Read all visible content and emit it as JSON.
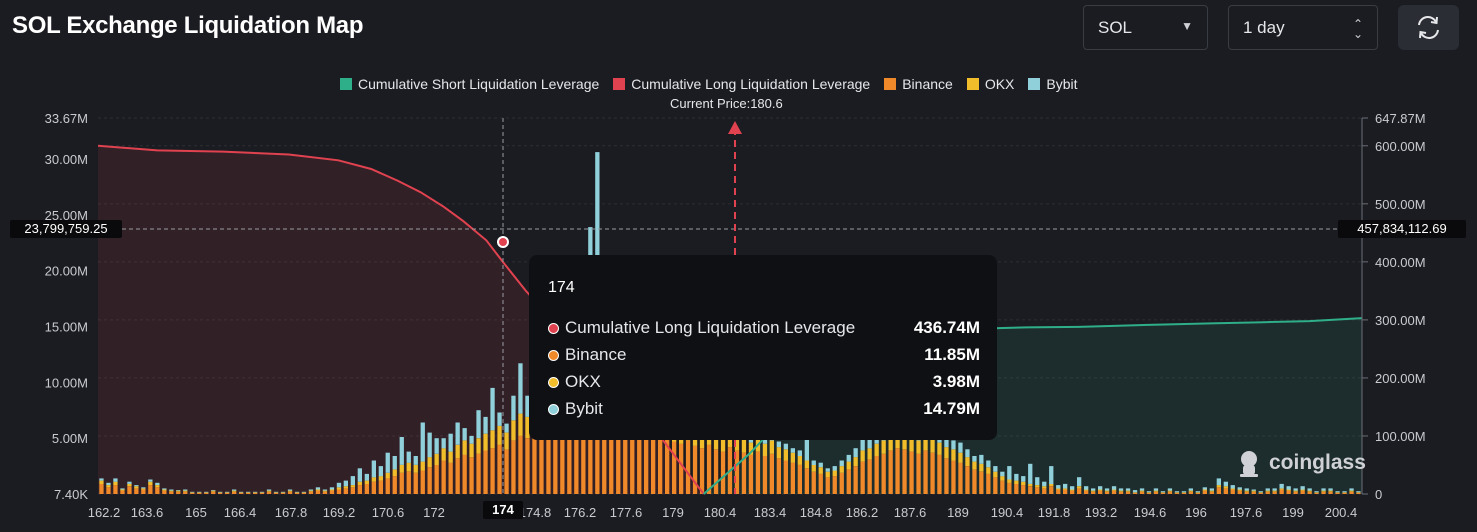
{
  "title": "SOL Exchange Liquidation Map",
  "controls": {
    "symbol": "SOL",
    "timeframe": "1 day"
  },
  "current_price_label": "Current Price:180.6",
  "crosshair": {
    "x_label": "174",
    "left_value": "23,799,759.25",
    "right_value": "457,834,112.69"
  },
  "tooltip": {
    "title": "174",
    "rows": [
      {
        "name": "Cumulative Long Liquidation Leverage",
        "value": "436.74M",
        "color": "#e0424f"
      },
      {
        "name": "Binance",
        "value": "11.85M",
        "color": "#f0892a"
      },
      {
        "name": "OKX",
        "value": "3.98M",
        "color": "#f1bd2b"
      },
      {
        "name": "Bybit",
        "value": "14.79M",
        "color": "#8fd0da"
      }
    ]
  },
  "watermark": "coinglass",
  "chart_data": {
    "type": "bar",
    "current_price": 180.6,
    "legend": [
      {
        "name": "Cumulative Short Liquidation Leverage",
        "color": "#2fae8a"
      },
      {
        "name": "Cumulative Long Liquidation Leverage",
        "color": "#e0424f"
      },
      {
        "name": "Binance",
        "color": "#f0892a"
      },
      {
        "name": "OKX",
        "color": "#f1bd2b"
      },
      {
        "name": "Bybit",
        "color": "#8fd0da"
      }
    ],
    "x_ticks": [
      "162.2",
      "163.6",
      "165",
      "166.4",
      "167.8",
      "169.2",
      "170.6",
      "172",
      "174",
      "174.8",
      "176.2",
      "177.6",
      "179",
      "180.4",
      "183.4",
      "184.8",
      "186.2",
      "187.6",
      "189",
      "190.4",
      "191.8",
      "193.2",
      "194.6",
      "196",
      "197.6",
      "199",
      "200.4"
    ],
    "left_axis": {
      "ticks": [
        "7.40K",
        "5.00M",
        "10.00M",
        "15.00M",
        "20.00M",
        "25.00M",
        "30.00M",
        "33.67M"
      ],
      "range": [
        0,
        33670000
      ]
    },
    "right_axis": {
      "ticks": [
        "0",
        "100.00M",
        "200.00M",
        "300.00M",
        "400.00M",
        "500.00M",
        "600.00M",
        "647.87M"
      ],
      "range": [
        0,
        647870000
      ]
    },
    "x_range": [
      162.2,
      200.6
    ],
    "series": [
      {
        "name": "Cumulative Long Liquidation Leverage",
        "axis": "right",
        "x": [
          162.2,
          164,
          166,
          168,
          169.5,
          170.5,
          171.3,
          172,
          172.7,
          173.3,
          174,
          174.5,
          175.2,
          176,
          177,
          178,
          179,
          180,
          180.6
        ],
        "values": [
          600,
          592,
          590,
          585,
          575,
          560,
          540,
          520,
          495,
          470,
          437,
          400,
          350,
          300,
          250,
          190,
          120,
          45,
          0
        ]
      },
      {
        "name": "Cumulative Short Liquidation Leverage",
        "axis": "right",
        "x": [
          180.6,
          181.2,
          182,
          183,
          184,
          185,
          186.3,
          187,
          188,
          189,
          190.4,
          192,
          193.2,
          194.6,
          196,
          197.6,
          199,
          200.6
        ],
        "values": [
          0,
          30,
          70,
          130,
          200,
          260,
          285,
          282,
          283,
          285,
          287,
          288,
          290,
          292,
          294,
          296,
          298,
          303
        ]
      },
      {
        "name": "Binance",
        "axis": "left",
        "values_millions": [
          0.9,
          0.6,
          0.8,
          0.3,
          0.7,
          0.5,
          0.4,
          0.8,
          0.6,
          0.3,
          0.2,
          0.2,
          0.2,
          0.1,
          0.1,
          0.1,
          0.2,
          0.1,
          0.1,
          0.2,
          0.1,
          0.1,
          0.1,
          0.1,
          0.2,
          0.1,
          0.1,
          0.2,
          0.1,
          0.1,
          0.2,
          0.3,
          0.2,
          0.3,
          0.4,
          0.5,
          0.6,
          0.8,
          0.9,
          1.1,
          1.2,
          1.4,
          1.6,
          1.9,
          2.0,
          1.9,
          2.1,
          2.4,
          2.6,
          3.0,
          2.8,
          3.2,
          3.5,
          3.3,
          3.6,
          3.9,
          4.1,
          4.4,
          4.0,
          4.8,
          5.2,
          5.0,
          5.6,
          6.1,
          5.8,
          6.4,
          6.9,
          7.5,
          8.2,
          9.3,
          10.6,
          11.85,
          11.0,
          9.8,
          8.6,
          7.5,
          6.6,
          5.9,
          5.5,
          5.2,
          4.9,
          5.0,
          4.7,
          4.5,
          4.8,
          4.3,
          4.1,
          4.4,
          4.0,
          3.8,
          4.2,
          3.9,
          3.7,
          3.5,
          3.8,
          3.4,
          3.6,
          3.2,
          3.0,
          2.8,
          2.6,
          2.3,
          2.0,
          1.8,
          1.5,
          1.6,
          1.9,
          2.2,
          2.5,
          2.9,
          3.1,
          3.4,
          3.6,
          3.9,
          4.1,
          4.0,
          3.8,
          3.6,
          3.9,
          3.7,
          3.5,
          3.2,
          3.0,
          2.8,
          2.5,
          2.2,
          2.0,
          1.8,
          1.5,
          1.2,
          1.0,
          0.9,
          0.8,
          0.7,
          0.6,
          0.5,
          0.7,
          0.4,
          0.4,
          0.3,
          0.5,
          0.3,
          0.2,
          0.3,
          0.2,
          0.3,
          0.2,
          0.2,
          0.1,
          0.2,
          0.1,
          0.2,
          0.1,
          0.2,
          0.1,
          0.1,
          0.2,
          0.1,
          0.3,
          0.2,
          0.6,
          0.5,
          0.4,
          0.3,
          0.2,
          0.2,
          0.1,
          0.2,
          0.2,
          0.4,
          0.3,
          0.2,
          0.3,
          0.2,
          0.1,
          0.2,
          0.2,
          0.1,
          0.1,
          0.2,
          0.1
        ]
      },
      {
        "name": "OKX",
        "axis": "left",
        "values_millions": [
          0.3,
          0.2,
          0.3,
          0.1,
          0.2,
          0.2,
          0.1,
          0.3,
          0.2,
          0.1,
          0.1,
          0.1,
          0.1,
          0.05,
          0.05,
          0.05,
          0.1,
          0.05,
          0.05,
          0.1,
          0.05,
          0.05,
          0.05,
          0.05,
          0.1,
          0.05,
          0.05,
          0.1,
          0.05,
          0.05,
          0.1,
          0.1,
          0.1,
          0.1,
          0.2,
          0.2,
          0.2,
          0.3,
          0.3,
          0.4,
          0.4,
          0.5,
          0.6,
          0.7,
          0.8,
          0.7,
          0.8,
          0.9,
          1.0,
          1.1,
          1.0,
          1.2,
          1.3,
          1.2,
          1.4,
          1.5,
          1.6,
          1.7,
          1.5,
          1.8,
          2.0,
          1.9,
          2.2,
          2.4,
          2.2,
          2.5,
          2.7,
          2.9,
          3.1,
          3.5,
          3.8,
          3.98,
          3.7,
          3.3,
          2.9,
          2.5,
          2.2,
          2.0,
          1.8,
          1.7,
          1.6,
          1.7,
          1.5,
          1.5,
          1.6,
          1.4,
          1.3,
          1.5,
          1.3,
          1.2,
          1.4,
          1.3,
          1.2,
          1.1,
          1.3,
          1.1,
          1.2,
          1.0,
          1.0,
          0.9,
          0.8,
          0.7,
          0.6,
          0.6,
          0.5,
          0.5,
          0.6,
          0.7,
          0.8,
          1.0,
          1.0,
          1.1,
          1.2,
          1.3,
          1.4,
          1.3,
          1.2,
          1.2,
          1.3,
          1.2,
          1.1,
          1.0,
          1.0,
          0.9,
          0.8,
          0.7,
          0.7,
          0.6,
          0.5,
          0.4,
          0.3,
          0.3,
          0.3,
          0.2,
          0.2,
          0.2,
          0.2,
          0.1,
          0.1,
          0.1,
          0.2,
          0.1,
          0.1,
          0.1,
          0.1,
          0.1,
          0.1,
          0.1,
          0.05,
          0.1,
          0.05,
          0.1,
          0.05,
          0.1,
          0.05,
          0.05,
          0.1,
          0.05,
          0.1,
          0.1,
          0.2,
          0.2,
          0.1,
          0.1,
          0.1,
          0.1,
          0.05,
          0.1,
          0.1,
          0.1,
          0.1,
          0.1,
          0.1,
          0.1,
          0.05,
          0.1,
          0.1,
          0.05,
          0.05,
          0.1,
          0.05
        ]
      },
      {
        "name": "Bybit",
        "axis": "left",
        "values_millions": [
          0.2,
          0.2,
          0.3,
          0.1,
          0.2,
          0.1,
          0.1,
          0.2,
          0.2,
          0.1,
          0.1,
          0.05,
          0.1,
          0.05,
          0.05,
          0.05,
          0.05,
          0.05,
          0.05,
          0.1,
          0.05,
          0.05,
          0.05,
          0.05,
          0.1,
          0.05,
          0.05,
          0.1,
          0.05,
          0.05,
          0.1,
          0.2,
          0.1,
          0.2,
          0.4,
          0.5,
          0.8,
          1.2,
          0.6,
          1.5,
          0.9,
          1.8,
          1.2,
          2.5,
          1.0,
          0.8,
          3.5,
          2.2,
          1.4,
          0.9,
          1.6,
          2.0,
          1.1,
          0.7,
          2.5,
          1.5,
          3.8,
          1.2,
          0.8,
          2.2,
          4.5,
          1.9,
          2.6,
          3.1,
          1.8,
          2.9,
          3.6,
          4.0,
          5.2,
          6.8,
          9.5,
          14.79,
          3.2,
          4.6,
          6.1,
          2.8,
          2.4,
          1.6,
          1.8,
          1.2,
          1.1,
          2.0,
          1.3,
          0.9,
          1.6,
          1.0,
          0.8,
          1.3,
          0.7,
          0.9,
          1.5,
          0.8,
          0.6,
          0.6,
          1.1,
          0.7,
          0.9,
          0.5,
          0.5,
          0.4,
          0.5,
          12.8,
          0.4,
          0.4,
          0.3,
          0.4,
          0.5,
          0.6,
          0.8,
          1.2,
          0.9,
          0.8,
          0.9,
          1.1,
          1.3,
          1.0,
          0.8,
          0.9,
          1.2,
          1.0,
          0.8,
          0.7,
          0.8,
          0.9,
          0.7,
          0.5,
          0.8,
          0.6,
          0.5,
          0.4,
          1.2,
          0.6,
          0.5,
          1.8,
          0.7,
          0.4,
          1.6,
          0.3,
          0.4,
          0.3,
          0.8,
          0.3,
          0.2,
          0.3,
          0.2,
          0.3,
          0.2,
          0.2,
          0.2,
          0.2,
          0.1,
          0.2,
          0.1,
          0.2,
          0.1,
          0.1,
          0.2,
          0.1,
          0.2,
          0.2,
          0.6,
          0.4,
          0.3,
          0.2,
          0.2,
          0.1,
          0.1,
          0.2,
          0.2,
          0.4,
          0.3,
          0.2,
          0.3,
          0.2,
          0.1,
          0.2,
          0.2,
          0.1,
          0.1,
          0.2,
          0.1
        ]
      }
    ],
    "grid": true
  }
}
